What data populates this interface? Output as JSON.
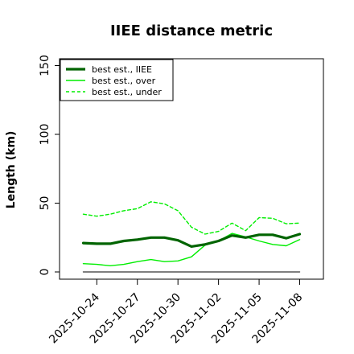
{
  "chart_data": {
    "type": "line",
    "title": "IIEE distance metric",
    "ylabel": "Length (km)",
    "xlabel": "",
    "ylim": [
      0,
      155
    ],
    "yticks": [
      0,
      50,
      100,
      150
    ],
    "xticks": [
      "2025-10-24",
      "2025-10-27",
      "2025-10-30",
      "2025-11-02",
      "2025-11-05",
      "2025-11-08"
    ],
    "x": [
      "2025-10-23",
      "2025-10-24",
      "2025-10-25",
      "2025-10-26",
      "2025-10-27",
      "2025-10-28",
      "2025-10-29",
      "2025-10-30",
      "2025-10-31",
      "2025-11-01",
      "2025-11-02",
      "2025-11-03",
      "2025-11-04",
      "2025-11-05",
      "2025-11-06",
      "2025-11-07",
      "2025-11-08"
    ],
    "legend_position": "top-left",
    "series": [
      {
        "name": "best est., IIEE",
        "color": "#006400",
        "style": "solid",
        "width": "thick",
        "values": [
          21,
          20.5,
          20.5,
          22.5,
          23.5,
          25,
          25,
          23,
          18.5,
          20,
          22.5,
          26.5,
          25,
          27,
          27,
          24.5,
          27.5
        ]
      },
      {
        "name": "best est., over",
        "color": "#00ee00",
        "style": "solid",
        "width": "thin",
        "values": [
          6,
          5.5,
          4.5,
          5.5,
          7.5,
          9,
          7.5,
          8,
          11,
          19.5,
          22.5,
          28,
          25.5,
          22.5,
          20,
          19,
          23.5
        ]
      },
      {
        "name": "best est., under",
        "color": "#00ee00",
        "style": "dashed",
        "width": "thin",
        "values": [
          42,
          40.5,
          42,
          44.5,
          46,
          51,
          49.5,
          44.5,
          32.5,
          27.5,
          29.5,
          35.5,
          30,
          39.5,
          39,
          35,
          35.5
        ]
      },
      {
        "color": "#555555",
        "style": "solid",
        "width": "thin",
        "values": [
          0,
          0,
          0,
          0,
          0,
          0,
          0,
          0,
          0,
          0,
          0,
          0,
          0,
          0,
          0,
          0,
          0
        ]
      }
    ]
  }
}
